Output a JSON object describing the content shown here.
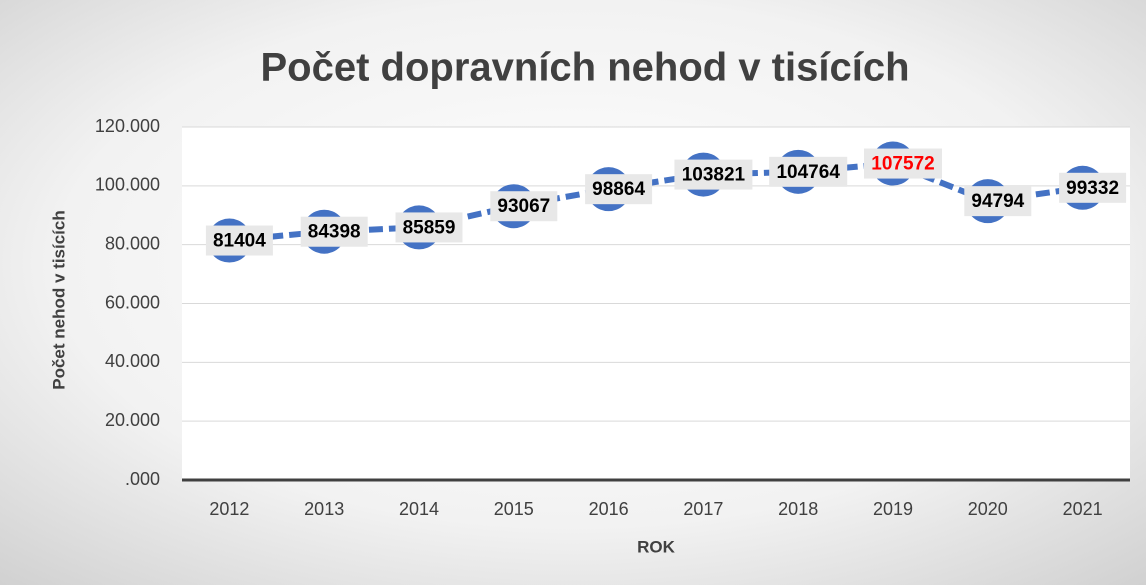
{
  "chart_data": {
    "type": "line",
    "title": "Počet dopravních nehod v tisících",
    "x_label": "ROK",
    "y_label": "Počet nehod v tisících",
    "categories": [
      "2012",
      "2013",
      "2014",
      "2015",
      "2016",
      "2017",
      "2018",
      "2019",
      "2020",
      "2021"
    ],
    "series": [
      {
        "name": "Počet nehod",
        "color": "#4472c4",
        "values": [
          81404,
          84398,
          85859,
          93067,
          98864,
          103821,
          104764,
          107572,
          94794,
          99332
        ]
      }
    ],
    "value_label_colors": [
      "#000000",
      "#000000",
      "#000000",
      "#000000",
      "#000000",
      "#000000",
      "#000000",
      "#ff0000",
      "#000000",
      "#000000"
    ],
    "ylim": [
      0,
      120000
    ],
    "yticks": [
      {
        "value": 0,
        "label": ".000"
      },
      {
        "value": 20000,
        "label": "20.000"
      },
      {
        "value": 40000,
        "label": "40.000"
      },
      {
        "value": 60000,
        "label": "60.000"
      },
      {
        "value": 80000,
        "label": "80.000"
      },
      {
        "value": 100000,
        "label": "100.000"
      },
      {
        "value": 120000,
        "label": "120.000"
      }
    ],
    "grid": true
  }
}
